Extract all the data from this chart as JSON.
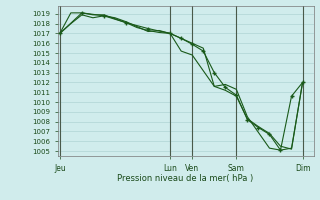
{
  "title": "Pression niveau de la mer( hPa )",
  "ylim": [
    1004.5,
    1019.8
  ],
  "yticks": [
    1005,
    1006,
    1007,
    1008,
    1009,
    1010,
    1011,
    1012,
    1013,
    1014,
    1015,
    1016,
    1017,
    1018,
    1019
  ],
  "xtick_labels": [
    "Jeu",
    "Lun",
    "Ven",
    "Sam",
    "Dim"
  ],
  "xtick_positions": [
    0.0,
    5.0,
    6.0,
    8.0,
    11.0
  ],
  "xlim": [
    -0.1,
    11.5
  ],
  "bg_color": "#d0ecec",
  "grid_color": "#b0d4d4",
  "line_color": "#1a5a1a",
  "vline_color": "#4a5a4a",
  "series1": {
    "x": [
      0,
      0.5,
      1.0,
      1.5,
      2.0,
      2.5,
      3.0,
      3.5,
      4.0,
      4.5,
      5.0,
      5.5,
      6.0,
      6.5,
      7.0,
      7.5,
      8.0,
      8.5,
      9.0,
      9.5,
      10.0,
      10.5,
      11.0
    ],
    "y": [
      1017.0,
      1018.0,
      1018.9,
      1018.6,
      1018.8,
      1018.6,
      1018.2,
      1017.7,
      1017.2,
      1017.3,
      1017.0,
      1015.2,
      1014.8,
      1013.2,
      1011.6,
      1011.2,
      1010.6,
      1008.3,
      1007.5,
      1006.8,
      1005.5,
      1005.2,
      1012.0
    ]
  },
  "series2": {
    "x": [
      0,
      0.5,
      1.0,
      1.5,
      2.0,
      2.5,
      3.0,
      3.5,
      4.0,
      4.5,
      5.0,
      5.5,
      6.0,
      6.5,
      7.0,
      7.5,
      8.0,
      8.5,
      9.0,
      9.5,
      10.0,
      10.5,
      11.0
    ],
    "y": [
      1017.0,
      1019.1,
      1019.1,
      1018.9,
      1018.9,
      1018.5,
      1018.1,
      1017.6,
      1017.3,
      1017.1,
      1017.0,
      1016.5,
      1016.0,
      1015.5,
      1011.6,
      1011.8,
      1011.3,
      1008.5,
      1006.9,
      1005.3,
      1005.1,
      1005.3,
      1012.0
    ]
  },
  "series3": {
    "x": [
      0,
      1.0,
      2.0,
      3.0,
      4.0,
      5.0,
      5.5,
      6.0,
      6.5,
      7.0,
      7.5,
      8.0,
      8.5,
      9.0,
      9.5,
      10.0,
      10.5,
      11.0
    ],
    "y": [
      1017.0,
      1019.1,
      1018.8,
      1018.1,
      1017.5,
      1017.0,
      1016.5,
      1015.9,
      1015.2,
      1013.0,
      1011.5,
      1010.7,
      1008.2,
      1007.4,
      1006.7,
      1005.1,
      1010.6,
      1012.0
    ]
  },
  "vline_positions": [
    0.0,
    5.0,
    6.0,
    8.0,
    11.0
  ]
}
